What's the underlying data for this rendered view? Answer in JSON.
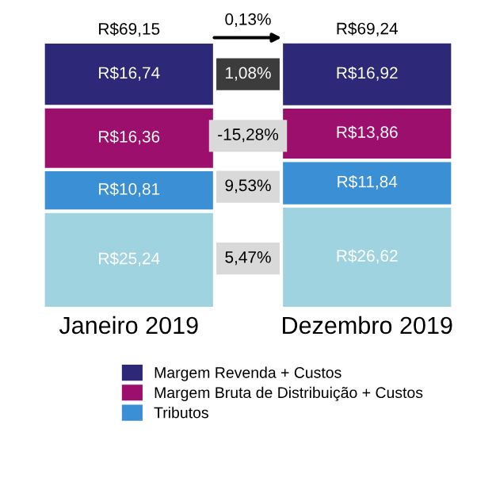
{
  "chart_data": {
    "type": "bar",
    "stacked": true,
    "categories": [
      "Janeiro 2019",
      "Dezembro 2019"
    ],
    "series": [
      {
        "color": "#9fd3e0",
        "values": [
          25.24,
          26.62
        ],
        "value_labels": [
          "R$25,24",
          "R$26,62"
        ]
      },
      {
        "name": "Tributos",
        "color": "#3b8fd4",
        "values": [
          10.81,
          11.84
        ],
        "value_labels": [
          "R$10,81",
          "R$11,84"
        ]
      },
      {
        "name": "Margem Bruta de Distribuição + Custos",
        "color": "#9c0f6c",
        "values": [
          16.36,
          13.86
        ],
        "value_labels": [
          "R$16,36",
          "R$13,86"
        ]
      },
      {
        "name": "Margem Revenda + Custos",
        "color": "#2d2878",
        "values": [
          16.74,
          16.92
        ],
        "value_labels": [
          "R$16,74",
          "R$16,92"
        ]
      }
    ],
    "totals": [
      "R$69,15",
      "R$69,24"
    ],
    "annotations": [
      "0,13%",
      "1,08%",
      "-15,28%",
      "9,53%",
      "5,47%"
    ],
    "legend": "bottom",
    "grid": false
  }
}
